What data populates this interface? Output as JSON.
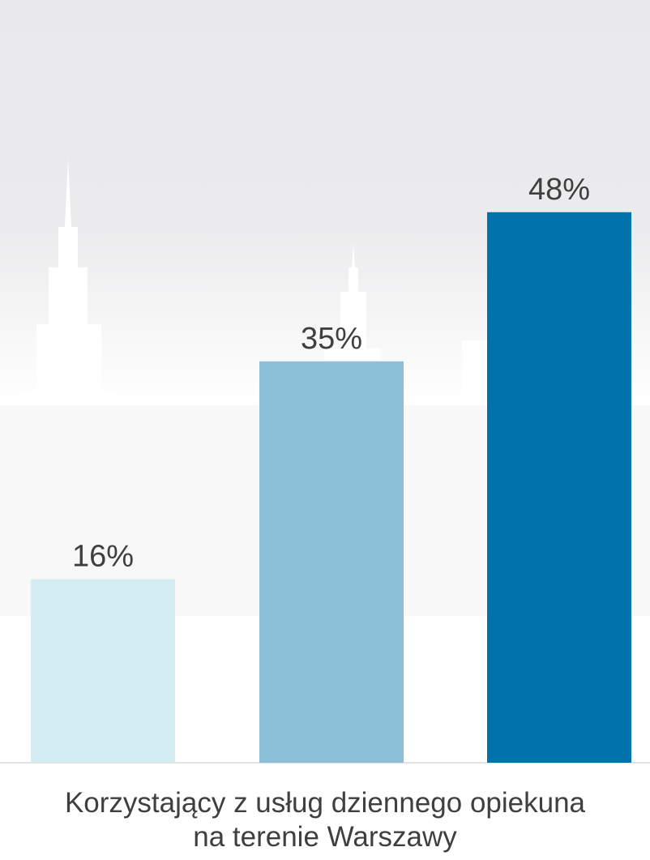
{
  "chart_data": {
    "type": "bar",
    "categories": [
      "",
      "",
      ""
    ],
    "values": [
      16,
      35,
      48
    ],
    "value_labels": [
      "16%",
      "35%",
      "48%"
    ],
    "colors": [
      "#d4edf2",
      "#8bc0d8",
      "#0073ad"
    ],
    "xlabel_lines": [
      "Korzystający z usług dziennego opiekuna",
      "na terenie Warszawy"
    ],
    "ylim": [
      0,
      60
    ],
    "grid": false,
    "legend": "none"
  },
  "background": {
    "description_icon": "city-skyline-silhouette",
    "color": "#ededef"
  }
}
